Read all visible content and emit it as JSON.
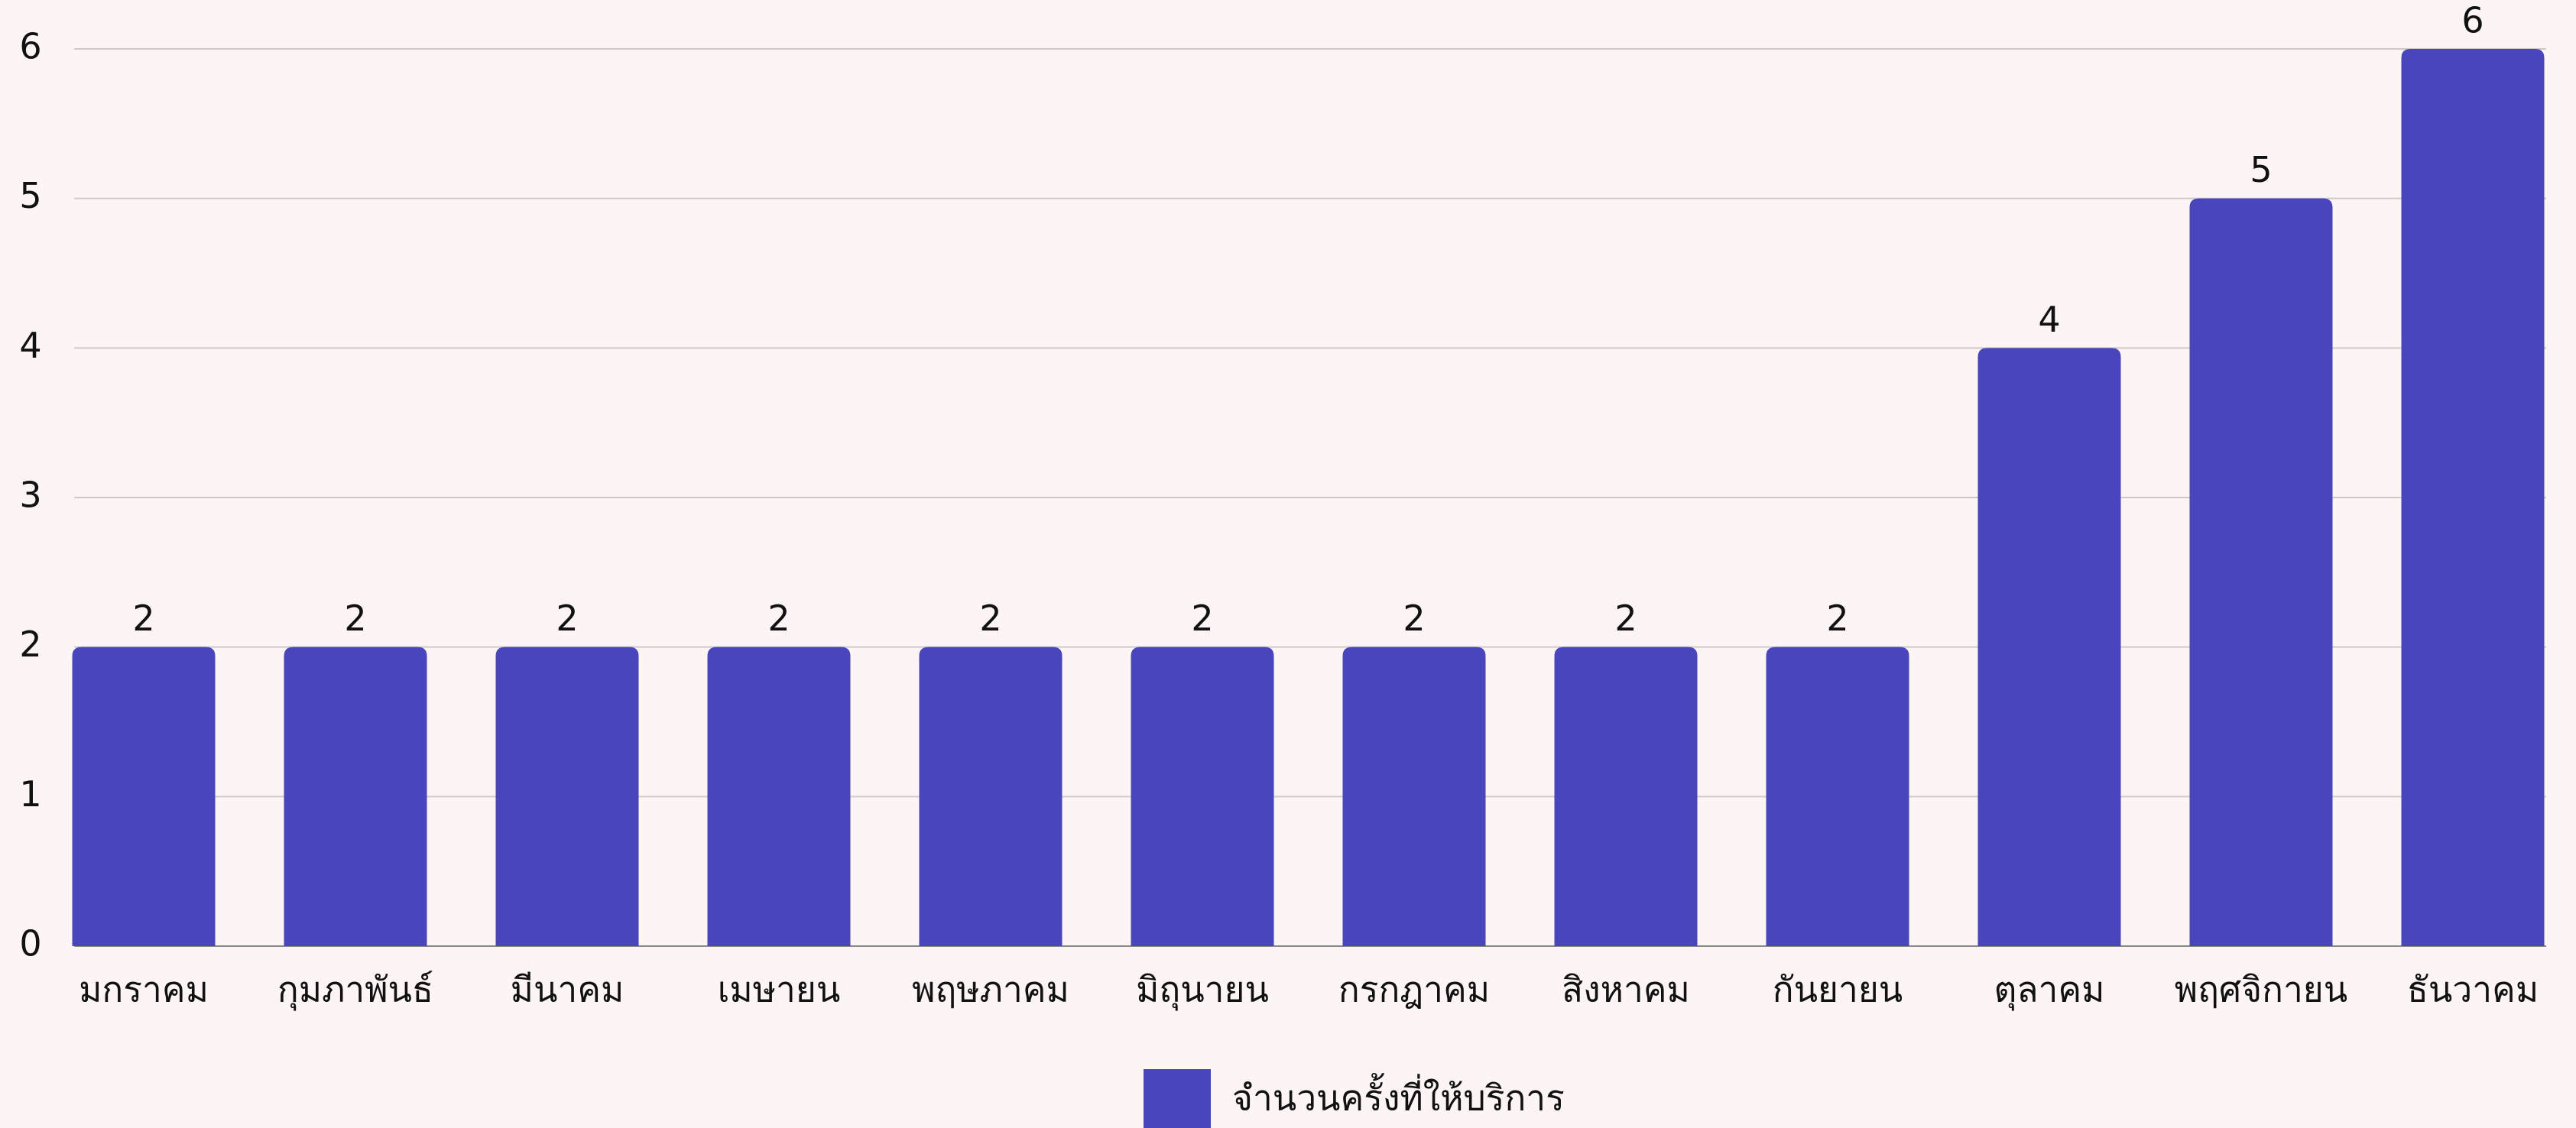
{
  "chart_data": {
    "type": "bar",
    "categories": [
      "มกราคม",
      "กุมภาพันธ์",
      "มีนาคม",
      "เมษายน",
      "พฤษภาคม",
      "มิถุนายน",
      "กรกฎาคม",
      "สิงหาคม",
      "กันยายน",
      "ตุลาคม",
      "พฤศจิกายน",
      "ธันวาคม"
    ],
    "series": [
      {
        "name": "จำนวนครั้งที่ให้บริการ",
        "color": "#4845bd",
        "values": [
          2,
          2,
          2,
          2,
          2,
          2,
          2,
          2,
          2,
          4,
          5,
          6
        ]
      }
    ],
    "ylim": [
      0,
      6
    ],
    "yticks": [
      0,
      1,
      2,
      3,
      4,
      5,
      6
    ],
    "grid": true,
    "legend": "bottom"
  }
}
